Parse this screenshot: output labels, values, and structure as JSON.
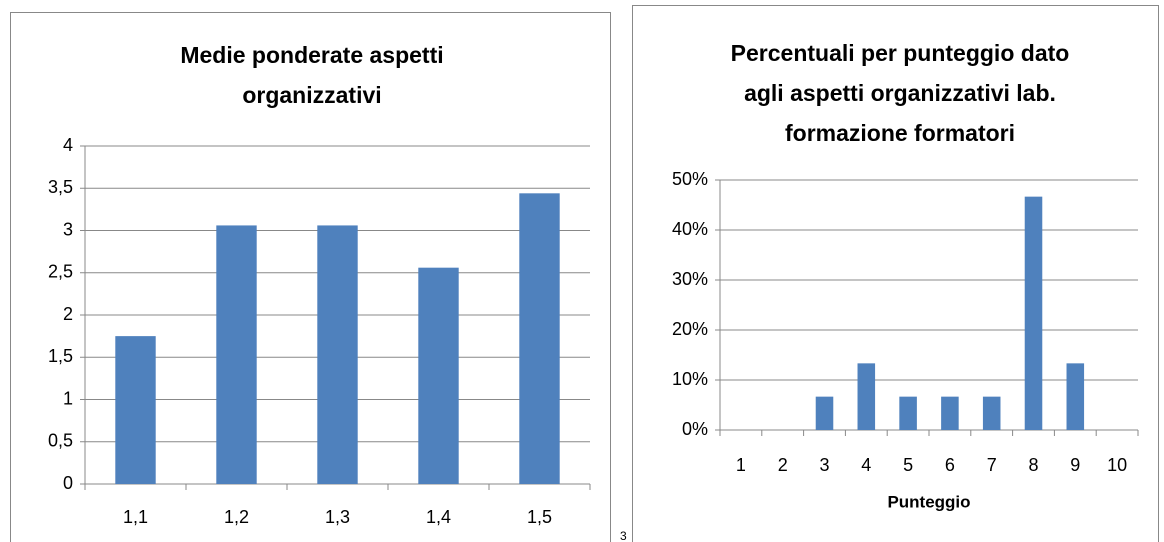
{
  "chart_data": [
    {
      "type": "bar",
      "title": [
        "Medie ponderate aspetti",
        "organizzativi"
      ],
      "categories": [
        "1,1",
        "1,2",
        "1,3",
        "1,4",
        "1,5"
      ],
      "values": [
        1.75,
        3.06,
        3.06,
        2.56,
        3.44
      ],
      "color": "#4f81bd",
      "ylim": [
        0,
        4
      ],
      "yticks": [
        0,
        {
          "value": 0.5,
          "label": "0,5"
        },
        1,
        {
          "value": 1.5,
          "label": "1,5"
        },
        2,
        {
          "value": 2.5,
          "label": "2,5"
        },
        3,
        {
          "value": 3.5,
          "label": "3,5"
        },
        4
      ],
      "grid": true
    },
    {
      "type": "bar",
      "title": [
        "Percentuali per punteggio dato",
        "agli aspetti organizzativi lab.",
        "formazione formatori"
      ],
      "x_label": "Punteggio",
      "categories": [
        "1",
        "2",
        "3",
        "4",
        "5",
        "6",
        "7",
        "8",
        "9",
        "10"
      ],
      "values": [
        0,
        0,
        6.67,
        13.33,
        6.67,
        6.67,
        6.67,
        46.67,
        13.33,
        0
      ],
      "color": "#4f81bd",
      "ylim": [
        0,
        50
      ],
      "yticks": [
        {
          "value": 0,
          "label": "0%"
        },
        {
          "value": 10,
          "label": "10%"
        },
        {
          "value": 20,
          "label": "20%"
        },
        {
          "value": 30,
          "label": "30%"
        },
        {
          "value": 40,
          "label": "40%"
        },
        {
          "value": 50,
          "label": "50%"
        }
      ],
      "grid": true
    }
  ],
  "page_number": "3"
}
